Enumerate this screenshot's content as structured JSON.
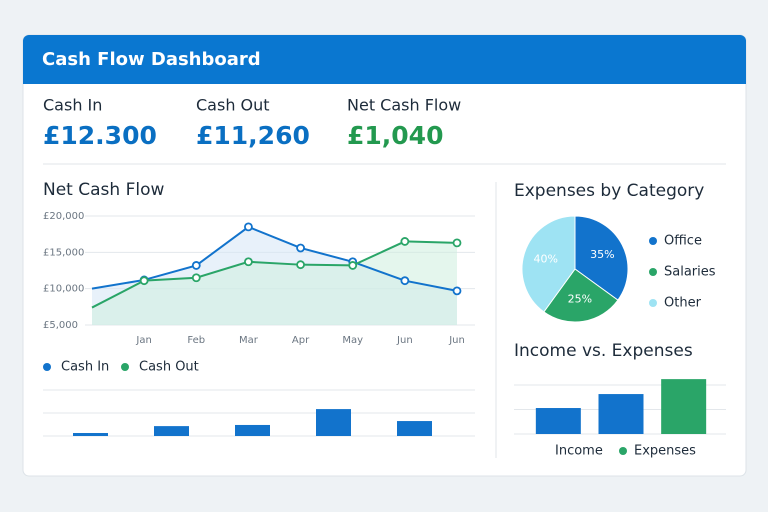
{
  "header": {
    "title": "Cash Flow Dashboard"
  },
  "kpis": [
    {
      "label": "Cash In",
      "value": "£12.300",
      "color": "#0a6fc2"
    },
    {
      "label": "Cash Out",
      "value": "£11,260",
      "color": "#0a6fc2"
    },
    {
      "label": "Net Cash Flow",
      "value": "£1,040",
      "color": "#23994f"
    }
  ],
  "chart_data": [
    {
      "type": "line",
      "title": "Net Cash Flow",
      "categories": [
        null,
        "Jan",
        "Feb",
        "Mar",
        "Apr",
        "May",
        "Jun",
        "Jun"
      ],
      "series": [
        {
          "name": "Cash In",
          "color": "#1273cc",
          "fill": "#d6e6f5",
          "values": [
            10000,
            11200,
            13200,
            18500,
            15600,
            13700,
            11100,
            9700
          ]
        },
        {
          "name": "Cash Out",
          "color": "#2aa568",
          "fill": "#cdeede",
          "values": [
            7400,
            11100,
            11500,
            13700,
            13300,
            13200,
            16500,
            16300
          ]
        }
      ],
      "ylim": [
        5000,
        20000
      ],
      "yticks": [
        {
          "value": 20000,
          "label": "£20,000"
        },
        {
          "value": 15000,
          "label": "£15,000"
        },
        {
          "value": 10000,
          "label": "£10,000"
        },
        {
          "value": 5000,
          "label": "£5,000"
        }
      ],
      "grid": true
    },
    {
      "type": "bar",
      "categories": [
        null,
        null,
        null,
        null,
        null
      ],
      "values": [
        0.13,
        0.43,
        0.48,
        1.17,
        0.65
      ],
      "color": "#1273cc",
      "ylim": [
        0,
        2
      ],
      "yticks": [
        0,
        1,
        2
      ],
      "grid": true
    },
    {
      "type": "pie",
      "title": "Expenses by Category",
      "categories": [
        "Office",
        "Salaries",
        "Other"
      ],
      "values": [
        35,
        25,
        40
      ],
      "value_labels": [
        "35%",
        "25%",
        "40%"
      ],
      "colors": [
        "#1273cc",
        "#2aa568",
        "#9ee3f3"
      ]
    },
    {
      "type": "bar",
      "title": "Income vs. Expenses",
      "categories": [
        null,
        null,
        null
      ],
      "values": [
        1.06,
        1.63,
        2.24
      ],
      "colors": [
        "#1273cc",
        "#1273cc",
        "#2aa568"
      ],
      "ylim": [
        0,
        2
      ],
      "yticks": [
        0,
        1,
        2
      ],
      "grid": true,
      "legend": [
        {
          "name": "Income"
        },
        {
          "name": "Expenses",
          "color": "#2aa568"
        }
      ]
    }
  ]
}
